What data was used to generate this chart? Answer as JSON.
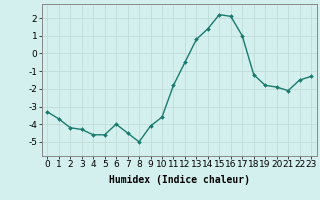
{
  "x": [
    0,
    1,
    2,
    3,
    4,
    5,
    6,
    7,
    8,
    9,
    10,
    11,
    12,
    13,
    14,
    15,
    16,
    17,
    18,
    19,
    20,
    21,
    22,
    23
  ],
  "y": [
    -3.3,
    -3.7,
    -4.2,
    -4.3,
    -4.6,
    -4.6,
    -4.0,
    -4.5,
    -5.0,
    -4.1,
    -3.6,
    -1.8,
    -0.5,
    0.8,
    1.4,
    2.2,
    2.1,
    1.0,
    -1.2,
    -1.8,
    -1.9,
    -2.1,
    -1.5,
    -1.3
  ],
  "xlabel": "Humidex (Indice chaleur)",
  "ylim": [
    -5.8,
    2.8
  ],
  "xlim": [
    -0.5,
    23.5
  ],
  "yticks": [
    -5,
    -4,
    -3,
    -2,
    -1,
    0,
    1,
    2
  ],
  "xticks": [
    0,
    1,
    2,
    3,
    4,
    5,
    6,
    7,
    8,
    9,
    10,
    11,
    12,
    13,
    14,
    15,
    16,
    17,
    18,
    19,
    20,
    21,
    22,
    23
  ],
  "line_color": "#1a7a6e",
  "marker": "D",
  "marker_size": 2.0,
  "bg_color": "#d4f0ee",
  "grid_color": "#c0dbd8",
  "xlabel_fontsize": 7,
  "tick_fontsize": 6.5,
  "linewidth": 1.0
}
